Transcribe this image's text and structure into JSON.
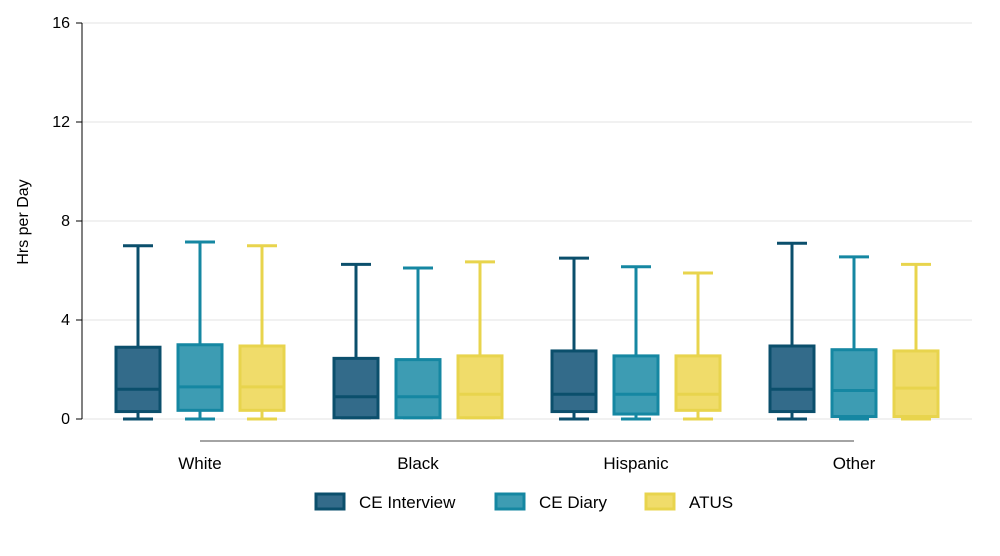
{
  "chart_data": {
    "type": "box",
    "ylabel": "Hrs per Day",
    "ylim": [
      0,
      16
    ],
    "yticks": [
      0,
      4,
      8,
      12,
      16
    ],
    "grid": true,
    "legend_position": "bottom",
    "categories": [
      "White",
      "Black",
      "Hispanic",
      "Other"
    ],
    "series": [
      {
        "name": "CE Interview",
        "fill": "#336b8a",
        "stroke": "#0b4f6c",
        "boxes": [
          {
            "min": 0,
            "q1": 0.3,
            "median": 1.2,
            "q3": 2.9,
            "max": 7.0
          },
          {
            "min": 0.05,
            "q1": 0.05,
            "median": 0.9,
            "q3": 2.45,
            "max": 6.25
          },
          {
            "min": 0,
            "q1": 0.3,
            "median": 1.0,
            "q3": 2.75,
            "max": 6.5
          },
          {
            "min": 0,
            "q1": 0.3,
            "median": 1.2,
            "q3": 2.95,
            "max": 7.1
          }
        ]
      },
      {
        "name": "CE Diary",
        "fill": "#3d9cb3",
        "stroke": "#1587a2",
        "boxes": [
          {
            "min": 0,
            "q1": 0.35,
            "median": 1.3,
            "q3": 3.0,
            "max": 7.15
          },
          {
            "min": 0.05,
            "q1": 0.05,
            "median": 0.9,
            "q3": 2.4,
            "max": 6.1
          },
          {
            "min": 0,
            "q1": 0.2,
            "median": 1.0,
            "q3": 2.55,
            "max": 6.15
          },
          {
            "min": 0,
            "q1": 0.1,
            "median": 1.15,
            "q3": 2.8,
            "max": 6.55
          }
        ]
      },
      {
        "name": "ATUS",
        "fill": "#f0dc6a",
        "stroke": "#e8d44d",
        "boxes": [
          {
            "min": 0,
            "q1": 0.35,
            "median": 1.3,
            "q3": 2.95,
            "max": 7.0
          },
          {
            "min": 0.05,
            "q1": 0.05,
            "median": 1.0,
            "q3": 2.55,
            "max": 6.35
          },
          {
            "min": 0,
            "q1": 0.35,
            "median": 1.0,
            "q3": 2.55,
            "max": 5.9
          },
          {
            "min": 0,
            "q1": 0.1,
            "median": 1.25,
            "q3": 2.75,
            "max": 6.25
          }
        ]
      }
    ]
  }
}
